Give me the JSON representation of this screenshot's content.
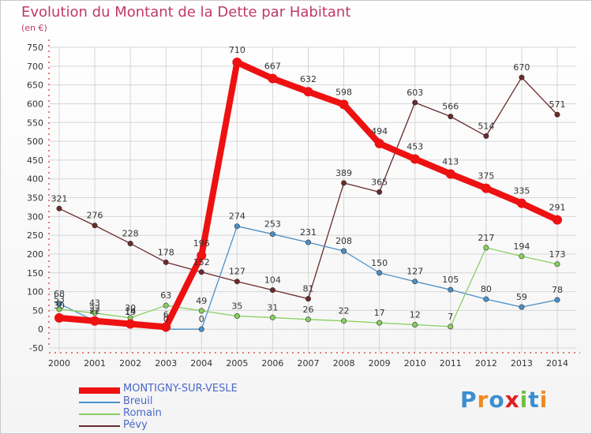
{
  "chart_data": {
    "type": "line",
    "title": "Evolution du Montant de la Dette par Habitant",
    "subtitle": "(en €)",
    "x": [
      "2000",
      "2001",
      "2002",
      "2003",
      "2004",
      "2005",
      "2006",
      "2007",
      "2008",
      "2009",
      "2010",
      "2011",
      "2012",
      "2013",
      "2014"
    ],
    "yticks": [
      -50,
      0,
      50,
      100,
      150,
      200,
      250,
      300,
      350,
      400,
      450,
      500,
      550,
      600,
      650,
      700,
      750
    ],
    "ylim": [
      -50,
      750
    ],
    "grid": true,
    "series": [
      {
        "name": "Pévy",
        "color": "#6b2a2a",
        "values": [
          321,
          276,
          228,
          178,
          152,
          127,
          104,
          81,
          389,
          365,
          603,
          566,
          514,
          670,
          571
        ]
      },
      {
        "name": "Breuil",
        "color": "#4a90c8",
        "values": [
          68,
          22,
          19,
          0,
          0,
          274,
          253,
          231,
          208,
          150,
          127,
          105,
          80,
          59,
          78
        ]
      },
      {
        "name": "Romain",
        "color": "#88d060",
        "values": [
          53,
          43,
          30,
          63,
          49,
          35,
          31,
          26,
          22,
          17,
          12,
          7,
          217,
          194,
          173
        ]
      },
      {
        "name": "MONTIGNY-SUR-VESLE",
        "color": "#ee1111",
        "values": [
          30,
          22,
          14,
          6,
          196,
          710,
          667,
          632,
          598,
          494,
          453,
          413,
          375,
          335,
          291
        ]
      }
    ],
    "legend": [
      "MONTIGNY-SUR-VESLE",
      "Breuil",
      "Romain",
      "Pévy"
    ]
  },
  "logo": {
    "letters": [
      "P",
      "r",
      "o",
      "x",
      "i",
      "t",
      "i"
    ]
  }
}
